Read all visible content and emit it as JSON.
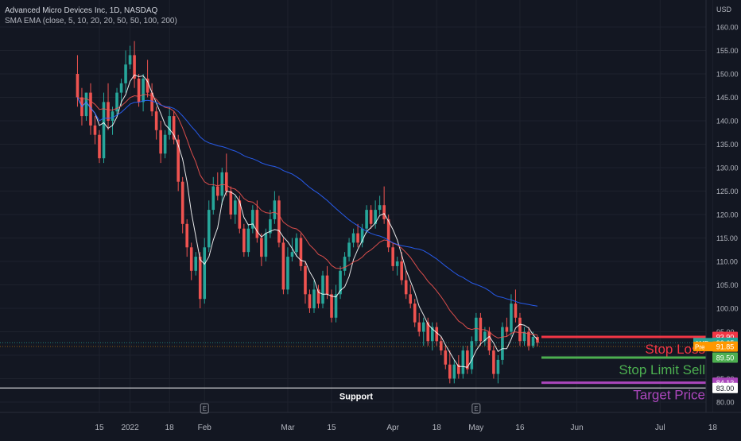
{
  "header": {
    "title": "Advanced Micro Devices Inc, 1D, NASDAQ",
    "indicators": "SMA EMA (close, 5, 10, 20, 20, 50, 50, 100, 200)",
    "currency": "USD"
  },
  "colors": {
    "background": "#131722",
    "up": "#26a69a",
    "down": "#ef5350",
    "sma_fast": "#ffffff",
    "ema_mid": "#ef5350",
    "ma_slow": "#2962ff",
    "stop_loss": "#f23645",
    "stop_limit": "#4caf50",
    "target": "#ab47bc"
  },
  "chart_data": {
    "type": "candlestick",
    "ylim": [
      79,
      164
    ],
    "y_ticks": [
      80,
      85,
      90,
      95,
      100,
      105,
      110,
      115,
      120,
      125,
      130,
      135,
      140,
      145,
      150,
      155,
      160
    ],
    "y_tick_labels": [
      "80.00",
      "85.00",
      "90.00",
      "95.00",
      "100.00",
      "105.00",
      "110.00",
      "115.00",
      "120.00",
      "125.00",
      "130.00",
      "135.00",
      "140.00",
      "145.00",
      "150.00",
      "155.00",
      "160.00"
    ],
    "x_tick_labels": [
      {
        "label": "15",
        "i": 5
      },
      {
        "label": "2022",
        "i": 12
      },
      {
        "label": "18",
        "i": 21
      },
      {
        "label": "Feb",
        "i": 29
      },
      {
        "label": "Mar",
        "i": 48
      },
      {
        "label": "15",
        "i": 58
      },
      {
        "label": "Apr",
        "i": 72
      },
      {
        "label": "18",
        "i": 82
      },
      {
        "label": "May",
        "i": 91
      },
      {
        "label": "16",
        "i": 101
      },
      {
        "label": "Jun",
        "i": 114
      },
      {
        "label": "Jul",
        "i": 133
      },
      {
        "label": "18",
        "i": 145
      }
    ],
    "earnings_markers": [
      {
        "label": "E",
        "i": 29
      },
      {
        "label": "E",
        "i": 91
      }
    ],
    "candles": [
      {
        "o": 150,
        "h": 154,
        "c": 145,
        "l": 143
      },
      {
        "o": 145,
        "h": 147,
        "c": 141,
        "l": 139
      },
      {
        "o": 141,
        "h": 146,
        "c": 146,
        "l": 140
      },
      {
        "o": 146,
        "h": 148,
        "c": 139,
        "l": 137
      },
      {
        "o": 139,
        "h": 141,
        "c": 137,
        "l": 135
      },
      {
        "o": 137,
        "h": 138,
        "c": 132,
        "l": 131
      },
      {
        "o": 132,
        "h": 146,
        "c": 144,
        "l": 131
      },
      {
        "o": 144,
        "h": 148,
        "c": 140,
        "l": 138
      },
      {
        "o": 140,
        "h": 143,
        "c": 142,
        "l": 137
      },
      {
        "o": 142,
        "h": 147,
        "c": 146,
        "l": 141
      },
      {
        "o": 146,
        "h": 149,
        "c": 148,
        "l": 143
      },
      {
        "o": 148,
        "h": 155,
        "c": 152,
        "l": 146
      },
      {
        "o": 152,
        "h": 156,
        "c": 154,
        "l": 151
      },
      {
        "o": 154,
        "h": 157,
        "c": 149,
        "l": 147
      },
      {
        "o": 149,
        "h": 150,
        "c": 144,
        "l": 143
      },
      {
        "o": 144,
        "h": 150,
        "c": 149,
        "l": 142
      },
      {
        "o": 149,
        "h": 153,
        "c": 146,
        "l": 145
      },
      {
        "o": 146,
        "h": 148,
        "c": 142,
        "l": 141
      },
      {
        "o": 142,
        "h": 143,
        "c": 138,
        "l": 136
      },
      {
        "o": 138,
        "h": 140,
        "c": 133,
        "l": 131
      },
      {
        "o": 133,
        "h": 138,
        "c": 137,
        "l": 132
      },
      {
        "o": 137,
        "h": 143,
        "c": 141,
        "l": 136
      },
      {
        "o": 141,
        "h": 142,
        "c": 136,
        "l": 135
      },
      {
        "o": 136,
        "h": 137,
        "c": 127,
        "l": 125
      },
      {
        "o": 127,
        "h": 128,
        "c": 118,
        "l": 116
      },
      {
        "o": 118,
        "h": 119,
        "c": 113,
        "l": 111
      },
      {
        "o": 113,
        "h": 114,
        "c": 108,
        "l": 106
      },
      {
        "o": 108,
        "h": 112,
        "c": 111,
        "l": 107
      },
      {
        "o": 111,
        "h": 112,
        "c": 102,
        "l": 100
      },
      {
        "o": 102,
        "h": 115,
        "c": 113,
        "l": 101
      },
      {
        "o": 113,
        "h": 123,
        "c": 121,
        "l": 112
      },
      {
        "o": 121,
        "h": 128,
        "c": 126,
        "l": 120
      },
      {
        "o": 126,
        "h": 129,
        "c": 124,
        "l": 123
      },
      {
        "o": 124,
        "h": 130,
        "c": 129,
        "l": 122
      },
      {
        "o": 129,
        "h": 133,
        "c": 125,
        "l": 124
      },
      {
        "o": 125,
        "h": 126,
        "c": 120,
        "l": 119
      },
      {
        "o": 120,
        "h": 124,
        "c": 123,
        "l": 118
      },
      {
        "o": 123,
        "h": 124,
        "c": 117,
        "l": 116
      },
      {
        "o": 117,
        "h": 118,
        "c": 112,
        "l": 111
      },
      {
        "o": 112,
        "h": 118,
        "c": 117,
        "l": 111
      },
      {
        "o": 117,
        "h": 122,
        "c": 121,
        "l": 116
      },
      {
        "o": 121,
        "h": 123,
        "c": 115,
        "l": 114
      },
      {
        "o": 115,
        "h": 116,
        "c": 111,
        "l": 109
      },
      {
        "o": 111,
        "h": 117,
        "c": 116,
        "l": 110
      },
      {
        "o": 116,
        "h": 121,
        "c": 119,
        "l": 115
      },
      {
        "o": 119,
        "h": 125,
        "c": 123,
        "l": 118
      },
      {
        "o": 123,
        "h": 124,
        "c": 114,
        "l": 113
      },
      {
        "o": 114,
        "h": 115,
        "c": 104,
        "l": 103
      },
      {
        "o": 104,
        "h": 113,
        "c": 111,
        "l": 103
      },
      {
        "o": 111,
        "h": 115,
        "c": 112,
        "l": 110
      },
      {
        "o": 112,
        "h": 116,
        "c": 115,
        "l": 111
      },
      {
        "o": 115,
        "h": 116,
        "c": 109,
        "l": 108
      },
      {
        "o": 109,
        "h": 110,
        "c": 103,
        "l": 101
      },
      {
        "o": 103,
        "h": 104,
        "c": 100,
        "l": 99
      },
      {
        "o": 100,
        "h": 106,
        "c": 104,
        "l": 99
      },
      {
        "o": 104,
        "h": 105,
        "c": 101,
        "l": 100
      },
      {
        "o": 101,
        "h": 108,
        "c": 107,
        "l": 100
      },
      {
        "o": 107,
        "h": 109,
        "c": 103,
        "l": 102
      },
      {
        "o": 103,
        "h": 104,
        "c": 98,
        "l": 97
      },
      {
        "o": 98,
        "h": 105,
        "c": 103,
        "l": 97
      },
      {
        "o": 103,
        "h": 109,
        "c": 108,
        "l": 102
      },
      {
        "o": 108,
        "h": 112,
        "c": 111,
        "l": 107
      },
      {
        "o": 111,
        "h": 115,
        "c": 114,
        "l": 110
      },
      {
        "o": 114,
        "h": 117,
        "c": 116,
        "l": 113
      },
      {
        "o": 116,
        "h": 118,
        "c": 114,
        "l": 113
      },
      {
        "o": 114,
        "h": 118,
        "c": 117,
        "l": 113
      },
      {
        "o": 117,
        "h": 122,
        "c": 121,
        "l": 116
      },
      {
        "o": 121,
        "h": 122,
        "c": 118,
        "l": 117
      },
      {
        "o": 118,
        "h": 123,
        "c": 121,
        "l": 117
      },
      {
        "o": 121,
        "h": 124,
        "c": 122,
        "l": 120
      },
      {
        "o": 122,
        "h": 126,
        "c": 119,
        "l": 118
      },
      {
        "o": 119,
        "h": 120,
        "c": 113,
        "l": 112
      },
      {
        "o": 113,
        "h": 114,
        "c": 109,
        "l": 108
      },
      {
        "o": 109,
        "h": 111,
        "c": 110,
        "l": 107
      },
      {
        "o": 110,
        "h": 112,
        "c": 106,
        "l": 105
      },
      {
        "o": 106,
        "h": 108,
        "c": 103,
        "l": 102
      },
      {
        "o": 103,
        "h": 105,
        "c": 101,
        "l": 100
      },
      {
        "o": 101,
        "h": 102,
        "c": 97,
        "l": 96
      },
      {
        "o": 97,
        "h": 99,
        "c": 95,
        "l": 94
      },
      {
        "o": 95,
        "h": 98,
        "c": 97,
        "l": 92
      },
      {
        "o": 97,
        "h": 98,
        "c": 93,
        "l": 92
      },
      {
        "o": 93,
        "h": 97,
        "c": 96,
        "l": 91
      },
      {
        "o": 96,
        "h": 97,
        "c": 93,
        "l": 92
      },
      {
        "o": 93,
        "h": 94,
        "c": 91,
        "l": 90
      },
      {
        "o": 91,
        "h": 92,
        "c": 88,
        "l": 87
      },
      {
        "o": 88,
        "h": 91,
        "c": 85,
        "l": 84
      },
      {
        "o": 85,
        "h": 89,
        "c": 88,
        "l": 84
      },
      {
        "o": 88,
        "h": 90,
        "c": 86,
        "l": 85
      },
      {
        "o": 86,
        "h": 92,
        "c": 91,
        "l": 85
      },
      {
        "o": 91,
        "h": 92,
        "c": 87,
        "l": 86
      },
      {
        "o": 87,
        "h": 94,
        "c": 93,
        "l": 86
      },
      {
        "o": 93,
        "h": 99,
        "c": 98,
        "l": 92
      },
      {
        "o": 98,
        "h": 99,
        "c": 93,
        "l": 92
      },
      {
        "o": 93,
        "h": 96,
        "c": 95,
        "l": 92
      },
      {
        "o": 95,
        "h": 96,
        "c": 91,
        "l": 90
      },
      {
        "o": 91,
        "h": 92,
        "c": 86,
        "l": 85
      },
      {
        "o": 86,
        "h": 90,
        "c": 89,
        "l": 84
      },
      {
        "o": 89,
        "h": 97,
        "c": 96,
        "l": 88
      },
      {
        "o": 96,
        "h": 98,
        "c": 95,
        "l": 94
      },
      {
        "o": 95,
        "h": 103,
        "c": 101,
        "l": 94
      },
      {
        "o": 101,
        "h": 104,
        "c": 98,
        "l": 97
      },
      {
        "o": 98,
        "h": 99,
        "c": 93,
        "l": 92
      },
      {
        "o": 93,
        "h": 96,
        "c": 95,
        "l": 92
      },
      {
        "o": 95,
        "h": 96,
        "c": 92,
        "l": 91
      },
      {
        "o": 92,
        "h": 95,
        "c": 93.9,
        "l": 91.5
      },
      {
        "o": 93.9,
        "h": 94.2,
        "c": 92.65,
        "l": 91.9
      }
    ],
    "series": [
      {
        "name": "SMA 5",
        "color": "#ffffff"
      },
      {
        "name": "EMA 20",
        "color": "#ef5350"
      },
      {
        "name": "SMA 50",
        "color": "#2962ff"
      }
    ],
    "horizontal_levels": [
      {
        "price": 93.9,
        "label": "Stop Loss",
        "color": "#f23645"
      },
      {
        "price": 89.5,
        "label": "Stop Limit Sell",
        "color": "#4caf50"
      },
      {
        "price": 84.13,
        "label": "Target Price",
        "color": "#ab47bc"
      },
      {
        "price": 83.0,
        "label": "Support",
        "color": "#ffffff"
      }
    ],
    "price_labels": [
      {
        "text": "93.90",
        "price": 93.9,
        "bg": "#f23645",
        "fg": "#ffffff"
      },
      {
        "text": "AMD",
        "price": 92.65,
        "bg": "#26a69a",
        "fg": "#ffffff",
        "tag": true
      },
      {
        "text": "92.65",
        "price": 92.65,
        "bg": "#26a69a",
        "fg": "#ffffff"
      },
      {
        "text": "Pre",
        "price": 91.85,
        "bg": "#ff9800",
        "fg": "#ffffff",
        "tag": true
      },
      {
        "text": "91.85",
        "price": 91.85,
        "bg": "#ff9800",
        "fg": "#ffffff"
      },
      {
        "text": "89.50",
        "price": 89.5,
        "bg": "#4caf50",
        "fg": "#ffffff"
      },
      {
        "text": "84.13",
        "price": 84.13,
        "bg": "#ab47bc",
        "fg": "#ffffff"
      },
      {
        "text": "83.00",
        "price": 83.0,
        "bg": "#ffffff",
        "fg": "#131722"
      }
    ]
  }
}
